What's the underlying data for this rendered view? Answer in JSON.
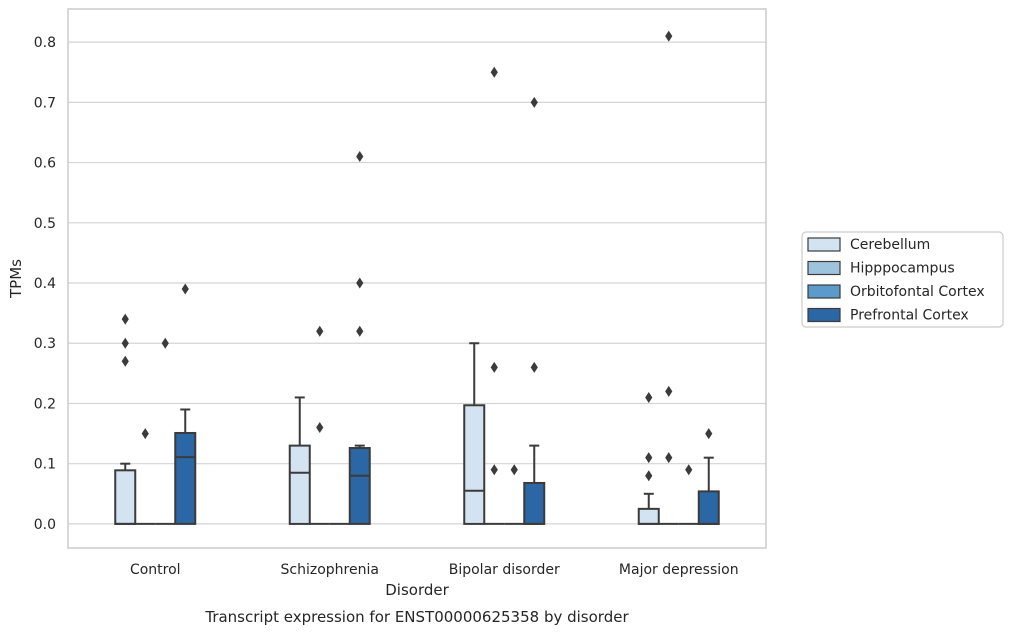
{
  "chart_data": {
    "type": "box",
    "caption": "Transcript expression for ENST00000625358 by disorder",
    "xlabel": "Disorder",
    "ylabel": "TPMs",
    "ylim": [
      -0.04,
      0.855
    ],
    "yticks": [
      "0.0",
      "0.1",
      "0.2",
      "0.3",
      "0.4",
      "0.5",
      "0.6",
      "0.7",
      "0.8"
    ],
    "grid": "horizontal",
    "legend_position": "right",
    "categories": [
      "Control",
      "Schizophrenia",
      "Bipolar disorder",
      "Major depression"
    ],
    "series": [
      {
        "name": "Cerebellum",
        "color": "#d4e3f2",
        "boxes": [
          {
            "q1": 0.0,
            "median": 0.0,
            "q3": 0.089,
            "whisker_low": 0.0,
            "whisker_high": 0.1,
            "outliers": [
              0.27,
              0.3,
              0.34
            ]
          },
          {
            "q1": 0.0,
            "median": 0.085,
            "q3": 0.13,
            "whisker_low": 0.0,
            "whisker_high": 0.21,
            "outliers": []
          },
          {
            "q1": 0.0,
            "median": 0.055,
            "q3": 0.197,
            "whisker_low": 0.0,
            "whisker_high": 0.3,
            "outliers": []
          },
          {
            "q1": 0.0,
            "median": 0.0,
            "q3": 0.025,
            "whisker_low": 0.0,
            "whisker_high": 0.05,
            "outliers": [
              0.08,
              0.11,
              0.21
            ]
          }
        ]
      },
      {
        "name": "Hipppocampus",
        "color": "#9ec3dc",
        "boxes": [
          {
            "q1": 0.0,
            "median": 0.0,
            "q3": 0.0,
            "whisker_low": 0.0,
            "whisker_high": 0.0,
            "outliers": [
              0.15
            ]
          },
          {
            "q1": 0.0,
            "median": 0.0,
            "q3": 0.0,
            "whisker_low": 0.0,
            "whisker_high": 0.0,
            "outliers": [
              0.16,
              0.32
            ]
          },
          {
            "q1": 0.0,
            "median": 0.0,
            "q3": 0.0,
            "whisker_low": 0.0,
            "whisker_high": 0.0,
            "outliers": [
              0.09,
              0.26,
              0.75
            ]
          },
          {
            "q1": 0.0,
            "median": 0.0,
            "q3": 0.0,
            "whisker_low": 0.0,
            "whisker_high": 0.0,
            "outliers": [
              0.11,
              0.22,
              0.81
            ]
          }
        ]
      },
      {
        "name": "Orbitofontal Cortex",
        "color": "#5b9ac9",
        "boxes": [
          {
            "q1": 0.0,
            "median": 0.0,
            "q3": 0.0,
            "whisker_low": 0.0,
            "whisker_high": 0.0,
            "outliers": [
              0.3
            ]
          },
          {
            "q1": 0.0,
            "median": 0.0,
            "q3": 0.0,
            "whisker_low": 0.0,
            "whisker_high": 0.0,
            "outliers": []
          },
          {
            "q1": 0.0,
            "median": 0.0,
            "q3": 0.0,
            "whisker_low": 0.0,
            "whisker_high": 0.0,
            "outliers": [
              0.09
            ]
          },
          {
            "q1": 0.0,
            "median": 0.0,
            "q3": 0.0,
            "whisker_low": 0.0,
            "whisker_high": 0.0,
            "outliers": [
              0.09
            ]
          }
        ]
      },
      {
        "name": "Prefrontal Cortex",
        "color": "#2a67a4",
        "boxes": [
          {
            "q1": 0.0,
            "median": 0.111,
            "q3": 0.151,
            "whisker_low": 0.0,
            "whisker_high": 0.19,
            "outliers": [
              0.39
            ]
          },
          {
            "q1": 0.0,
            "median": 0.08,
            "q3": 0.126,
            "whisker_low": 0.0,
            "whisker_high": 0.13,
            "outliers": [
              0.32,
              0.4,
              0.61
            ]
          },
          {
            "q1": 0.0,
            "median": 0.0,
            "q3": 0.068,
            "whisker_low": 0.0,
            "whisker_high": 0.13,
            "outliers": [
              0.26,
              0.7
            ]
          },
          {
            "q1": 0.0,
            "median": 0.0,
            "q3": 0.054,
            "whisker_low": 0.0,
            "whisker_high": 0.11,
            "outliers": [
              0.15
            ]
          }
        ]
      }
    ]
  }
}
